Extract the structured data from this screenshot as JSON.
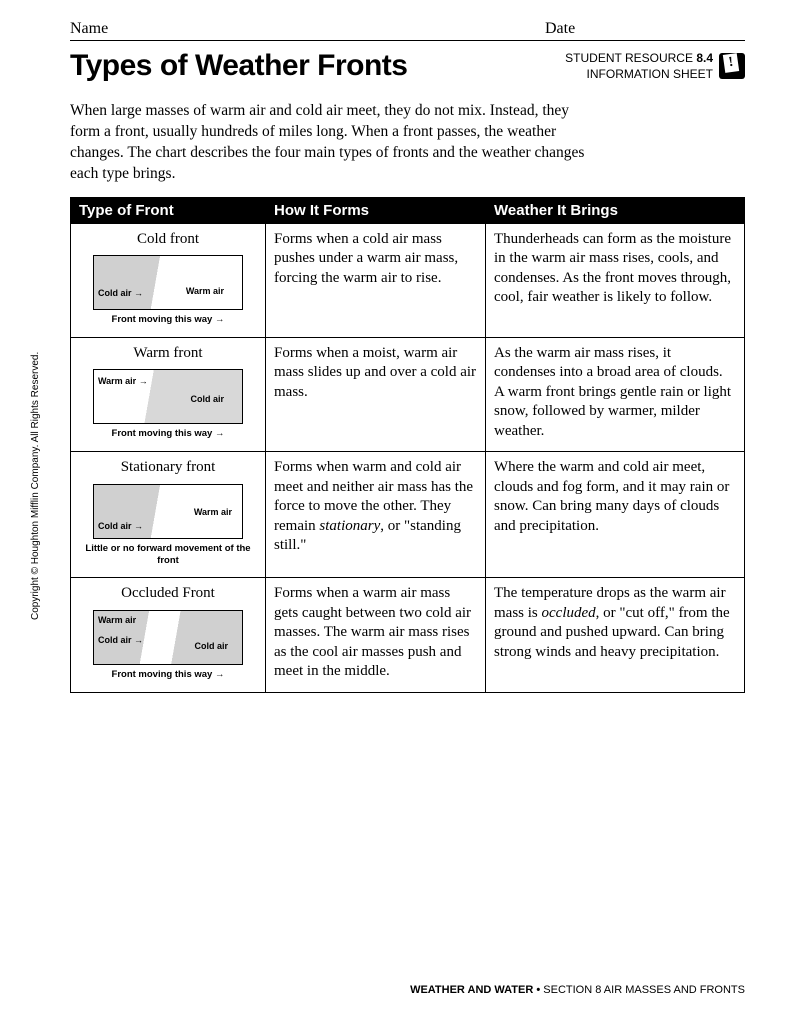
{
  "header": {
    "name_label": "Name",
    "date_label": "Date"
  },
  "title": "Types of Weather Fronts",
  "resource": {
    "line1a": "STUDENT RESOURCE ",
    "line1b": "8.4",
    "line2": "INFORMATION SHEET"
  },
  "intro": "When large masses of warm air and cold air meet, they do not mix. Instead, they form a front, usually hundreds of miles long. When a front passes, the weather changes. The chart describes the four main types of fronts and the weather changes each type brings.",
  "columns": [
    "Type of Front",
    "How It Forms",
    "Weather It Brings"
  ],
  "rows": [
    {
      "name": "Cold front",
      "caption": "Front moving this way",
      "labels": {
        "left": "Cold air",
        "right": "Warm air"
      },
      "how": "Forms when a cold air mass pushes under a warm air mass, forcing the warm air to rise.",
      "weather": "Thunderheads can form as the moisture in the warm air mass rises, cools, and condenses. As the front moves through, cool, fair weather is likely to follow."
    },
    {
      "name": "Warm front",
      "caption": "Front moving this way",
      "labels": {
        "left": "Warm air",
        "right": "Cold air"
      },
      "how": "Forms when a moist, warm air mass slides up and over a cold air mass.",
      "weather": "As the warm air mass rises, it condenses into a broad area of clouds. A warm front brings gentle rain or light snow, followed by warmer, milder weather."
    },
    {
      "name": "Stationary front",
      "caption": "Little or no forward movement of the front",
      "labels": {
        "left": "Cold air",
        "right": "Warm air"
      },
      "how_html": "Forms when warm and cold air meet and neither air mass has the force to move the other. They remain <em>stationary</em>, or \"standing still.\"",
      "weather": "Where the warm and cold air meet, clouds and fog form, and it may rain or snow. Can bring many days of clouds and precipitation."
    },
    {
      "name": "Occluded Front",
      "caption": "Front moving this way",
      "labels": {
        "left": "Warm air",
        "left2": "Cold air",
        "right": "Cold air"
      },
      "how": "Forms when a warm air mass gets caught between two cold air masses. The warm air mass rises as the cool air masses push and meet in the middle.",
      "weather_html": "The temperature drops as the warm air mass is <em>occluded</em>, or \"cut off,\" from the ground and pushed upward. Can bring strong winds and heavy precipitation."
    }
  ],
  "copyright": "Copyright © Houghton Mifflin Company. All Rights Reserved.",
  "footer": {
    "bold": "WEATHER AND WATER • ",
    "rest": "SECTION 8 AIR MASSES AND FRONTS"
  }
}
